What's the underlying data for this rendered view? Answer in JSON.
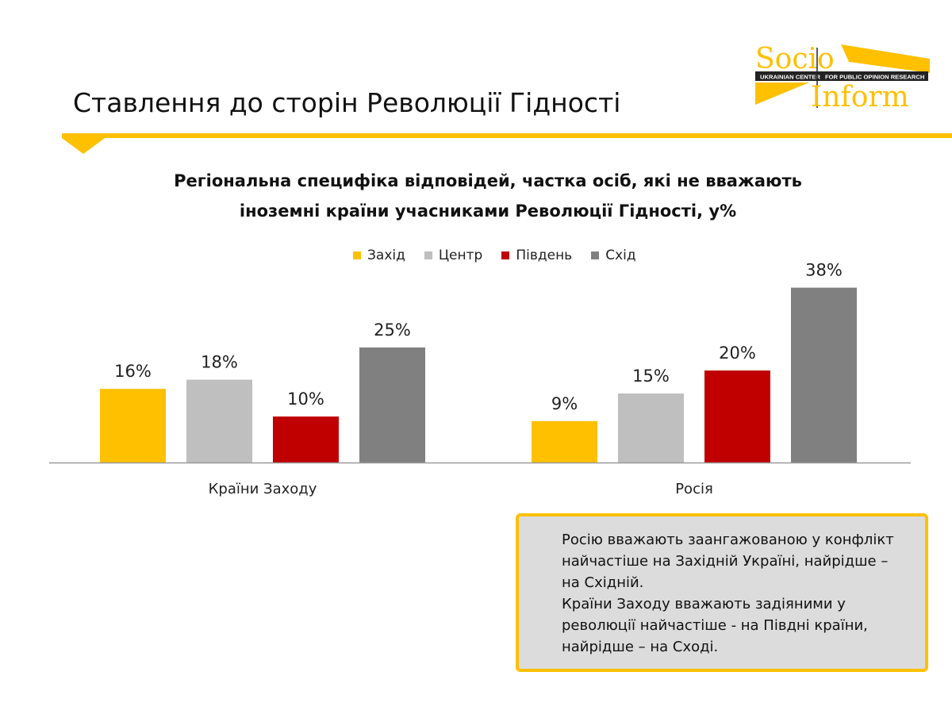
{
  "header": {
    "title": "Ставлення до сторін Революції Гідності",
    "accent_color": "#ffc000"
  },
  "logo": {
    "word_top": "Socio",
    "word_bottom": "Inform",
    "band_left": "UKRAINIAN CENTER",
    "band_right": "FOR PUBLIC OPINION RESEARCH"
  },
  "chart_data": {
    "type": "bar",
    "title_lines": [
      "Регіональна специфіка відповідей, частка осіб, які не вважають",
      "іноземні країни учасниками Революції Гідності, у%"
    ],
    "categories": [
      "Країни Заходу",
      "Росія"
    ],
    "series": [
      {
        "name": "Захід",
        "color": "#ffc000",
        "values": [
          16,
          9
        ]
      },
      {
        "name": "Центр",
        "color": "#bfbfbf",
        "values": [
          18,
          15
        ]
      },
      {
        "name": "Південь",
        "color": "#c00000",
        "values": [
          10,
          20
        ]
      },
      {
        "name": "Схід",
        "color": "#808080",
        "values": [
          25,
          38
        ]
      }
    ],
    "value_suffix": "%",
    "ylim": [
      0,
      40
    ],
    "legend_position": "top-center",
    "grid": false
  },
  "note": {
    "lines": [
      "Росію вважають заангажованою у конфлікт",
      "найчастіше на Західній Україні, найрідше –",
      "на Східній.",
      "Країни Заходу вважають задіяними у",
      "революції найчастіше - на Півдні країни,",
      "найрідше – на Сході."
    ]
  }
}
